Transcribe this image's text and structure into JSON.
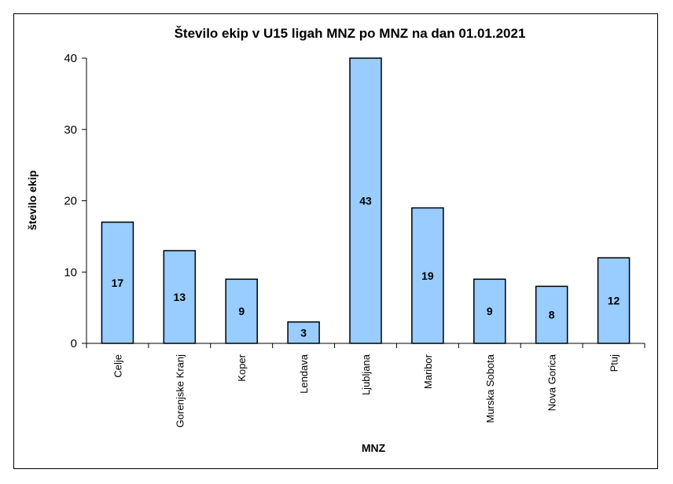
{
  "chart_data": {
    "type": "bar",
    "title": "Število ekip v U15 ligah MNZ po MNZ na dan 01.01.2021",
    "xlabel": "MNZ",
    "ylabel": "število ekip",
    "categories": [
      "Celje",
      "Gorenjske Kranj",
      "Koper",
      "Lendava",
      "Ljubljana",
      "Maribor",
      "Murska Sobota",
      "Nova Gorica",
      "Ptuj"
    ],
    "values": [
      17,
      13,
      9,
      3,
      43,
      19,
      9,
      8,
      12
    ],
    "ylim": [
      0,
      40
    ],
    "yticks": [
      0,
      10,
      20,
      30,
      40
    ],
    "bar_color": "#99ccff",
    "bar_border": "#000000",
    "grid": false,
    "legend": "none"
  }
}
